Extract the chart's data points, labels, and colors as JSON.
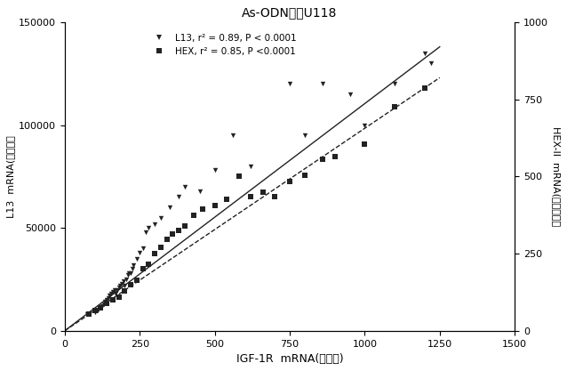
{
  "title": "As-ODN治療U118",
  "xlabel": "IGF-1R  mRNA(コピー)",
  "ylabel_left": "L13  mRNA(コピー）",
  "ylabel_right": "HEX-II  mRNA(コピー。）",
  "legend_L13": "L13, r² = 0.89, P < 0.0001",
  "legend_HEX": "HEX, r² = 0.85, P <0.0001",
  "xlim": [
    0,
    1500
  ],
  "ylim_left": [
    0,
    150000
  ],
  "ylim_right": [
    0,
    1000
  ],
  "xticks": [
    0,
    250,
    500,
    750,
    1000,
    1250,
    1500
  ],
  "yticks_left": [
    0,
    50000,
    100000,
    150000
  ],
  "yticks_right": [
    0,
    250,
    500,
    750,
    1000
  ],
  "L13_x": [
    75,
    100,
    110,
    120,
    125,
    130,
    135,
    140,
    145,
    150,
    155,
    160,
    165,
    170,
    175,
    180,
    185,
    190,
    195,
    200,
    205,
    210,
    215,
    220,
    225,
    230,
    240,
    250,
    260,
    270,
    280,
    300,
    320,
    350,
    380,
    400,
    450,
    500,
    560,
    620,
    700,
    750,
    800,
    860,
    950,
    1000,
    1100,
    1200,
    1220
  ],
  "L13_y": [
    8000,
    9000,
    10000,
    11000,
    12000,
    13000,
    14000,
    15000,
    16000,
    17000,
    18000,
    19000,
    20000,
    18000,
    20000,
    21000,
    22000,
    23000,
    24000,
    22000,
    25000,
    27000,
    28000,
    28000,
    30000,
    32000,
    35000,
    38000,
    40000,
    48000,
    50000,
    52000,
    55000,
    60000,
    65000,
    70000,
    68000,
    78000,
    95000,
    80000,
    65000,
    120000,
    95000,
    120000,
    115000,
    100000,
    120000,
    135000,
    130000
  ],
  "HEX_x": [
    80,
    100,
    120,
    140,
    160,
    180,
    200,
    220,
    240,
    260,
    280,
    300,
    320,
    340,
    360,
    380,
    400,
    430,
    460,
    500,
    540,
    580,
    620,
    660,
    700,
    750,
    800,
    860,
    900,
    1000,
    1100,
    1200
  ],
  "HEX_y": [
    55,
    65,
    75,
    90,
    100,
    110,
    130,
    150,
    165,
    200,
    215,
    250,
    270,
    295,
    315,
    325,
    340,
    375,
    395,
    405,
    425,
    500,
    435,
    450,
    435,
    485,
    505,
    555,
    565,
    605,
    725,
    785
  ],
  "L13_line_x": [
    0,
    1250
  ],
  "L13_line_y": [
    0,
    138000
  ],
  "HEX_line_x": [
    0,
    1250
  ],
  "HEX_line_y": [
    0,
    820
  ],
  "marker_color": "#222222",
  "line_color": "#222222"
}
